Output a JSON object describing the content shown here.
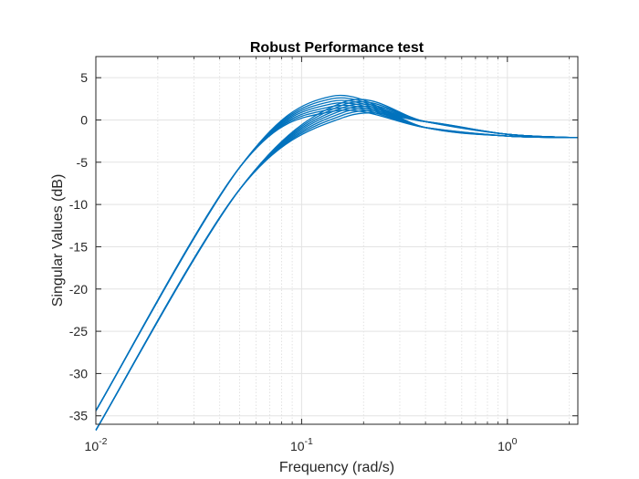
{
  "chart_data": {
    "type": "line",
    "title": "Robust Performance test",
    "xlabel": "Frequency (rad/s)",
    "ylabel": "Singular Values (dB)",
    "xscale": "log",
    "xlim": [
      0.01,
      2.2
    ],
    "ylim": [
      -36,
      7.5
    ],
    "x_ticks": [
      {
        "value": 0.01,
        "base": "10",
        "exp": "-2"
      },
      {
        "value": 0.1,
        "base": "10",
        "exp": "-1"
      },
      {
        "value": 1,
        "base": "10",
        "exp": "0"
      }
    ],
    "y_ticks": [
      5,
      0,
      -5,
      -10,
      -15,
      -20,
      -25,
      -30,
      -35
    ],
    "y_tick_labels": [
      "5",
      "0",
      "-5",
      "-10",
      "-15",
      "-20",
      "-25",
      "-30",
      "-35"
    ],
    "grid": true,
    "minor_grid": true,
    "box": true,
    "line_color": "#0072BD",
    "series_count": 14,
    "series": [
      {
        "x": [
          0.01,
          0.05,
          0.14,
          0.4,
          1.0,
          2.2
        ],
        "values": [
          -34.4,
          -5.6,
          2.8,
          -0.9,
          -1.9,
          -2.1
        ]
      },
      {
        "x": [
          0.01,
          0.05,
          0.14,
          0.4,
          1.0,
          2.2
        ],
        "values": [
          -34.4,
          -5.6,
          2.5,
          -0.9,
          -1.9,
          -2.1
        ]
      },
      {
        "x": [
          0.01,
          0.05,
          0.14,
          0.4,
          1.0,
          2.2
        ],
        "values": [
          -34.4,
          -5.6,
          2.2,
          -0.9,
          -1.9,
          -2.1
        ]
      },
      {
        "x": [
          0.01,
          0.05,
          0.14,
          0.4,
          1.0,
          2.2
        ],
        "values": [
          -34.4,
          -5.6,
          1.9,
          -0.9,
          -1.9,
          -2.1
        ]
      },
      {
        "x": [
          0.01,
          0.05,
          0.14,
          0.4,
          1.0,
          2.2
        ],
        "values": [
          -34.4,
          -5.6,
          1.6,
          -0.9,
          -1.9,
          -2.1
        ]
      },
      {
        "x": [
          0.01,
          0.05,
          0.14,
          0.4,
          1.0,
          2.2
        ],
        "values": [
          -34.4,
          -5.6,
          1.3,
          -0.9,
          -1.9,
          -2.1
        ]
      },
      {
        "x": [
          0.01,
          0.05,
          0.14,
          0.4,
          1.0,
          2.2
        ],
        "values": [
          -34.4,
          -5.6,
          1.0,
          -0.9,
          -1.9,
          -2.1
        ]
      },
      {
        "x": [
          0.01,
          0.05,
          0.16,
          0.4,
          1.0,
          2.2
        ],
        "values": [
          -36.7,
          -8.2,
          2.1,
          -0.2,
          -1.7,
          -2.1
        ]
      },
      {
        "x": [
          0.01,
          0.05,
          0.16,
          0.4,
          1.0,
          2.2
        ],
        "values": [
          -36.7,
          -8.2,
          1.8,
          -0.2,
          -1.7,
          -2.1
        ]
      },
      {
        "x": [
          0.01,
          0.05,
          0.16,
          0.4,
          1.0,
          2.2
        ],
        "values": [
          -36.7,
          -8.2,
          1.5,
          -0.2,
          -1.7,
          -2.1
        ]
      },
      {
        "x": [
          0.01,
          0.05,
          0.16,
          0.4,
          1.0,
          2.2
        ],
        "values": [
          -36.7,
          -8.2,
          1.2,
          -0.2,
          -1.7,
          -2.1
        ]
      },
      {
        "x": [
          0.01,
          0.05,
          0.16,
          0.4,
          1.0,
          2.2
        ],
        "values": [
          -36.7,
          -8.2,
          0.9,
          -0.2,
          -1.7,
          -2.1
        ]
      },
      {
        "x": [
          0.01,
          0.05,
          0.16,
          0.4,
          1.0,
          2.2
        ],
        "values": [
          -36.7,
          -8.2,
          0.6,
          -0.2,
          -1.7,
          -2.1
        ]
      },
      {
        "x": [
          0.01,
          0.05,
          0.16,
          0.4,
          1.0,
          2.2
        ],
        "values": [
          -36.7,
          -8.2,
          0.3,
          -0.2,
          -1.7,
          -2.1
        ]
      }
    ]
  }
}
